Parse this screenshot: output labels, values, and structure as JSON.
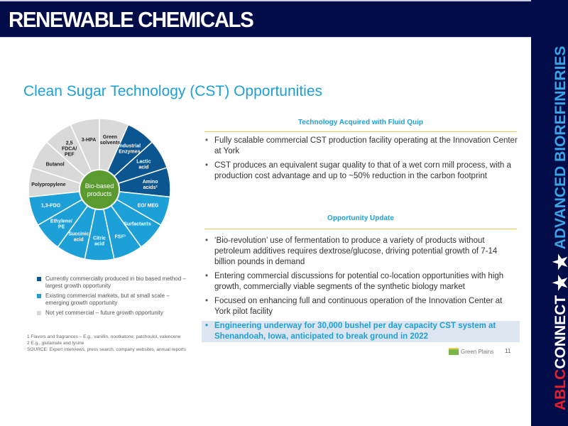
{
  "header": {
    "title": "RENEWABLE CHEMICALS"
  },
  "sidebar": {
    "brand_part1": "ABLC",
    "brand_part2": "CONNECT",
    "star_icon": "star-icon",
    "tagline": "ADVANCED BIOREFINERIES"
  },
  "slide": {
    "title": "Clean Sugar Technology (CST) Opportunities",
    "wheel": {
      "center": "Bio-based products",
      "colors": {
        "current": "#0b5590",
        "existing": "#1d9fd8",
        "future": "#d9d9d9",
        "center": "#5a9a2e"
      },
      "segments": [
        {
          "label": "Green solvents",
          "category": "future"
        },
        {
          "label": "Industrial Enzymes",
          "category": "current"
        },
        {
          "label": "Lactic acid",
          "category": "current"
        },
        {
          "label": "Amino acids²",
          "category": "current"
        },
        {
          "label": "EO/ MEG",
          "category": "existing"
        },
        {
          "label": "Surfactants",
          "category": "existing"
        },
        {
          "label": "FSF¹",
          "category": "existing"
        },
        {
          "label": "Citric acid",
          "category": "existing"
        },
        {
          "label": "Succinic acid",
          "category": "existing"
        },
        {
          "label": "Ethylene/ PE",
          "category": "existing"
        },
        {
          "label": "1,3-PDO",
          "category": "existing"
        },
        {
          "label": "Polypropylene",
          "category": "future"
        },
        {
          "label": "Butanol",
          "category": "future"
        },
        {
          "label": "2,5 FDCA/ PEF",
          "category": "future"
        },
        {
          "label": "3-HPA",
          "category": "future"
        }
      ]
    },
    "legend": [
      {
        "label": "Currently commercially produced in bio based method – largest growth opportunity",
        "category": "current"
      },
      {
        "label": "Existing commercial markets, but at small scale – emerging growth opportunity",
        "category": "existing"
      },
      {
        "label": "Not yet commercial – future growth opportunity",
        "category": "future"
      }
    ],
    "footnotes": [
      "1 Flavors and fragrances – E.g., vanillin, nootkatone, patchoulol, valencene",
      "2 E.g., glutamate and lysine",
      "SOURCE: Expert interviews, press search, company websites, annual reports"
    ],
    "section1": {
      "title": "Technology Acquired with Fluid Quip",
      "bullets": [
        "Fully scalable commercial CST production facility operating at the Innovation Center at York",
        "CST produces an equivalent sugar quality to that of a wet corn mill process, with a production cost advantage and up to ~50% reduction in the carbon footprint"
      ]
    },
    "section2": {
      "title": "Opportunity Update",
      "bullets": [
        "‘Bio-revolution’ use of fermentation to produce a variety of products without petroleum additives requires dextrose/glucose, driving potential growth of 7-14 billion pounds in demand",
        "Entering commercial discussions for potential co-location opportunities with high growth, commercially viable segments of the synthetic biology market",
        "Focused on enhancing full and continuous operation of the Innovation Center at York pilot facility",
        "Engineering underway for 30,000 bushel per day capacity CST system at Shenandoah, Iowa, anticipated to break ground in 2022"
      ]
    },
    "footer": {
      "logo_text": "Green Plains",
      "page_number": "11"
    }
  }
}
